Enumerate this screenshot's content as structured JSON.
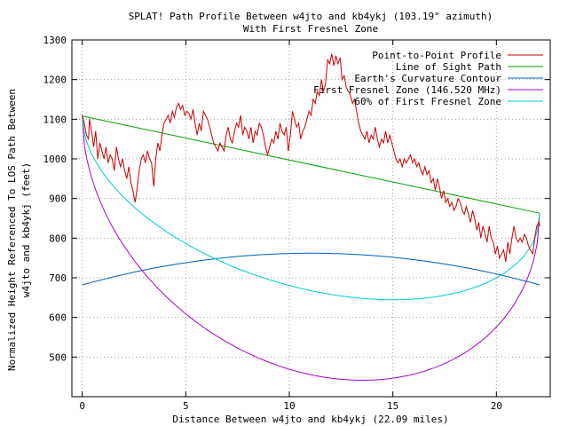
{
  "chart_data": {
    "type": "line",
    "title_line1": "SPLAT! Path Profile Between w4jto and kb4ykj (103.19° azimuth)",
    "title_line2": "With First Fresnel Zone",
    "xlabel": "Distance Between w4jto and kb4ykj (22.09 miles)",
    "ylabel_line1": "Normalized Height Referenced To LOS Path Between",
    "ylabel_line2": "w4jto and kb4ykj (feet)",
    "xlim": [
      -0.5,
      22.6
    ],
    "ylim": [
      400,
      1300
    ],
    "x_ticks": [
      0,
      5,
      10,
      15,
      20
    ],
    "y_ticks": [
      500,
      600,
      700,
      800,
      900,
      1000,
      1100,
      1200,
      1300
    ],
    "grid": true,
    "legend_position": "top-right",
    "series": [
      {
        "name": "Point-to-Point Profile",
        "color": "#cc0000",
        "points": [
          [
            0,
            1110
          ],
          [
            0.1,
            1090
          ],
          [
            0.2,
            1060
          ],
          [
            0.3,
            1050
          ],
          [
            0.35,
            1100
          ],
          [
            0.45,
            1070
          ],
          [
            0.55,
            1030
          ],
          [
            0.65,
            1070
          ],
          [
            0.75,
            1000
          ],
          [
            0.85,
            1040
          ],
          [
            0.95,
            1020
          ],
          [
            1.05,
            1000
          ],
          [
            1.15,
            1030
          ],
          [
            1.25,
            990
          ],
          [
            1.35,
            1010
          ],
          [
            1.45,
            1000
          ],
          [
            1.55,
            970
          ],
          [
            1.65,
            1030
          ],
          [
            1.75,
            1000
          ],
          [
            1.85,
            980
          ],
          [
            1.95,
            1000
          ],
          [
            2.05,
            970
          ],
          [
            2.15,
            950
          ],
          [
            2.25,
            980
          ],
          [
            2.35,
            940
          ],
          [
            2.45,
            920
          ],
          [
            2.55,
            890
          ],
          [
            2.65,
            925
          ],
          [
            2.75,
            970
          ],
          [
            2.85,
            1000
          ],
          [
            2.95,
            1010
          ],
          [
            3.05,
            990
          ],
          [
            3.15,
            1020
          ],
          [
            3.25,
            1000
          ],
          [
            3.35,
            990
          ],
          [
            3.45,
            930
          ],
          [
            3.55,
            1000
          ],
          [
            3.65,
            1040
          ],
          [
            3.75,
            1020
          ],
          [
            3.85,
            1060
          ],
          [
            3.95,
            1090
          ],
          [
            4.05,
            1100
          ],
          [
            4.15,
            1110
          ],
          [
            4.25,
            1090
          ],
          [
            4.35,
            1120
          ],
          [
            4.45,
            1105
          ],
          [
            4.55,
            1130
          ],
          [
            4.65,
            1140
          ],
          [
            4.75,
            1125
          ],
          [
            4.85,
            1135
          ],
          [
            4.95,
            1110
          ],
          [
            5.05,
            1120
          ],
          [
            5.15,
            1115
          ],
          [
            5.25,
            1100
          ],
          [
            5.35,
            1125
          ],
          [
            5.45,
            1090
          ],
          [
            5.55,
            1060
          ],
          [
            5.65,
            1090
          ],
          [
            5.75,
            1070
          ],
          [
            5.85,
            1120
          ],
          [
            5.95,
            1110
          ],
          [
            6.05,
            1100
          ],
          [
            6.15,
            1080
          ],
          [
            6.25,
            1060
          ],
          [
            6.35,
            1040
          ],
          [
            6.45,
            1030
          ],
          [
            6.55,
            1020
          ],
          [
            6.65,
            1040
          ],
          [
            6.75,
            1030
          ],
          [
            6.85,
            1020
          ],
          [
            6.95,
            1060
          ],
          [
            7.05,
            1080
          ],
          [
            7.15,
            1050
          ],
          [
            7.25,
            1040
          ],
          [
            7.35,
            1070
          ],
          [
            7.45,
            1090
          ],
          [
            7.55,
            1080
          ],
          [
            7.65,
            1110
          ],
          [
            7.75,
            1060
          ],
          [
            7.85,
            1080
          ],
          [
            7.95,
            1070
          ],
          [
            8.05,
            1050
          ],
          [
            8.15,
            1080
          ],
          [
            8.25,
            1040
          ],
          [
            8.35,
            1070
          ],
          [
            8.45,
            1060
          ],
          [
            8.55,
            1090
          ],
          [
            8.65,
            1080
          ],
          [
            8.75,
            1060
          ],
          [
            8.85,
            1030
          ],
          [
            8.95,
            1010
          ],
          [
            9.05,
            1030
          ],
          [
            9.15,
            1050
          ],
          [
            9.25,
            1040
          ],
          [
            9.35,
            1070
          ],
          [
            9.45,
            1050
          ],
          [
            9.55,
            1090
          ],
          [
            9.65,
            1070
          ],
          [
            9.75,
            1060
          ],
          [
            9.85,
            1080
          ],
          [
            9.95,
            1020
          ],
          [
            10.05,
            1060
          ],
          [
            10.15,
            1120
          ],
          [
            10.25,
            1100
          ],
          [
            10.35,
            1080
          ],
          [
            10.45,
            1090
          ],
          [
            10.55,
            1050
          ],
          [
            10.65,
            1070
          ],
          [
            10.75,
            1080
          ],
          [
            10.85,
            1100
          ],
          [
            10.95,
            1120
          ],
          [
            11.05,
            1110
          ],
          [
            11.15,
            1150
          ],
          [
            11.25,
            1140
          ],
          [
            11.35,
            1170
          ],
          [
            11.45,
            1160
          ],
          [
            11.55,
            1200
          ],
          [
            11.65,
            1170
          ],
          [
            11.75,
            1190
          ],
          [
            11.85,
            1250
          ],
          [
            11.95,
            1240
          ],
          [
            12.05,
            1265
          ],
          [
            12.15,
            1235
          ],
          [
            12.25,
            1260
          ],
          [
            12.35,
            1240
          ],
          [
            12.45,
            1255
          ],
          [
            12.55,
            1200
          ],
          [
            12.65,
            1210
          ],
          [
            12.75,
            1180
          ],
          [
            12.85,
            1170
          ],
          [
            12.95,
            1160
          ],
          [
            13.05,
            1140
          ],
          [
            13.15,
            1150
          ],
          [
            13.25,
            1120
          ],
          [
            13.35,
            1090
          ],
          [
            13.45,
            1070
          ],
          [
            13.55,
            1060
          ],
          [
            13.65,
            1050
          ],
          [
            13.75,
            1070
          ],
          [
            13.85,
            1040
          ],
          [
            13.95,
            1060
          ],
          [
            14.05,
            1050
          ],
          [
            14.15,
            1080
          ],
          [
            14.25,
            1050
          ],
          [
            14.35,
            1030
          ],
          [
            14.45,
            1050
          ],
          [
            14.55,
            1040
          ],
          [
            14.65,
            1070
          ],
          [
            14.75,
            1040
          ],
          [
            14.85,
            1060
          ],
          [
            14.95,
            1040
          ],
          [
            15.05,
            1020
          ],
          [
            15.15,
            1000
          ],
          [
            15.25,
            990
          ],
          [
            15.35,
            1000
          ],
          [
            15.45,
            980
          ],
          [
            15.55,
            1000
          ],
          [
            15.65,
            990
          ],
          [
            15.75,
            1000
          ],
          [
            15.85,
            1010
          ],
          [
            15.95,
            990
          ],
          [
            16.05,
            1000
          ],
          [
            16.15,
            980
          ],
          [
            16.25,
            990
          ],
          [
            16.35,
            970
          ],
          [
            16.45,
            960
          ],
          [
            16.55,
            980
          ],
          [
            16.65,
            960
          ],
          [
            16.75,
            970
          ],
          [
            16.85,
            940
          ],
          [
            16.95,
            950
          ],
          [
            17.05,
            920
          ],
          [
            17.15,
            950
          ],
          [
            17.25,
            930
          ],
          [
            17.35,
            900
          ],
          [
            17.45,
            920
          ],
          [
            17.55,
            890
          ],
          [
            17.65,
            900
          ],
          [
            17.75,
            880
          ],
          [
            17.85,
            890
          ],
          [
            17.95,
            870
          ],
          [
            18.05,
            880
          ],
          [
            18.15,
            900
          ],
          [
            18.25,
            890
          ],
          [
            18.35,
            870
          ],
          [
            18.45,
            860
          ],
          [
            18.55,
            880
          ],
          [
            18.65,
            860
          ],
          [
            18.75,
            840
          ],
          [
            18.85,
            870
          ],
          [
            18.95,
            850
          ],
          [
            19.05,
            820
          ],
          [
            19.15,
            840
          ],
          [
            19.25,
            800
          ],
          [
            19.35,
            830
          ],
          [
            19.45,
            810
          ],
          [
            19.55,
            790
          ],
          [
            19.65,
            830
          ],
          [
            19.75,
            800
          ],
          [
            19.85,
            790
          ],
          [
            19.95,
            760
          ],
          [
            20.05,
            780
          ],
          [
            20.15,
            750
          ],
          [
            20.25,
            760
          ],
          [
            20.35,
            770
          ],
          [
            20.45,
            740
          ],
          [
            20.55,
            790
          ],
          [
            20.65,
            760
          ],
          [
            20.75,
            800
          ],
          [
            20.85,
            830
          ],
          [
            20.95,
            800
          ],
          [
            21.05,
            790
          ],
          [
            21.15,
            800
          ],
          [
            21.25,
            790
          ],
          [
            21.35,
            810
          ],
          [
            21.45,
            800
          ],
          [
            21.55,
            780
          ],
          [
            21.65,
            770
          ],
          [
            21.75,
            760
          ],
          [
            21.85,
            800
          ],
          [
            21.95,
            830
          ],
          [
            22.05,
            840
          ],
          [
            22.09,
            830
          ]
        ]
      },
      {
        "name": "Line of Sight Path",
        "color": "#00a000"
      },
      {
        "name": "Earth's Curvature Contour",
        "color": "#0060c0"
      },
      {
        "name": "First Fresnel Zone (146.520 MHz)",
        "color": "#aa00cc"
      },
      {
        "name": "60% of First Fresnel Zone",
        "color": "#00cccc"
      }
    ],
    "los": {
      "x": [
        0,
        22.09
      ],
      "y": [
        1108,
        863
      ]
    },
    "earth_curvature": {
      "x_range": [
        0,
        22.09
      ],
      "y_edge": 682,
      "y_peak": 762
    },
    "fresnel": {
      "x_range": [
        0,
        22.09
      ],
      "y_start": 1108,
      "y_end": 863,
      "max_depth": 530
    },
    "fresnel60": {
      "max_depth": 318
    }
  }
}
